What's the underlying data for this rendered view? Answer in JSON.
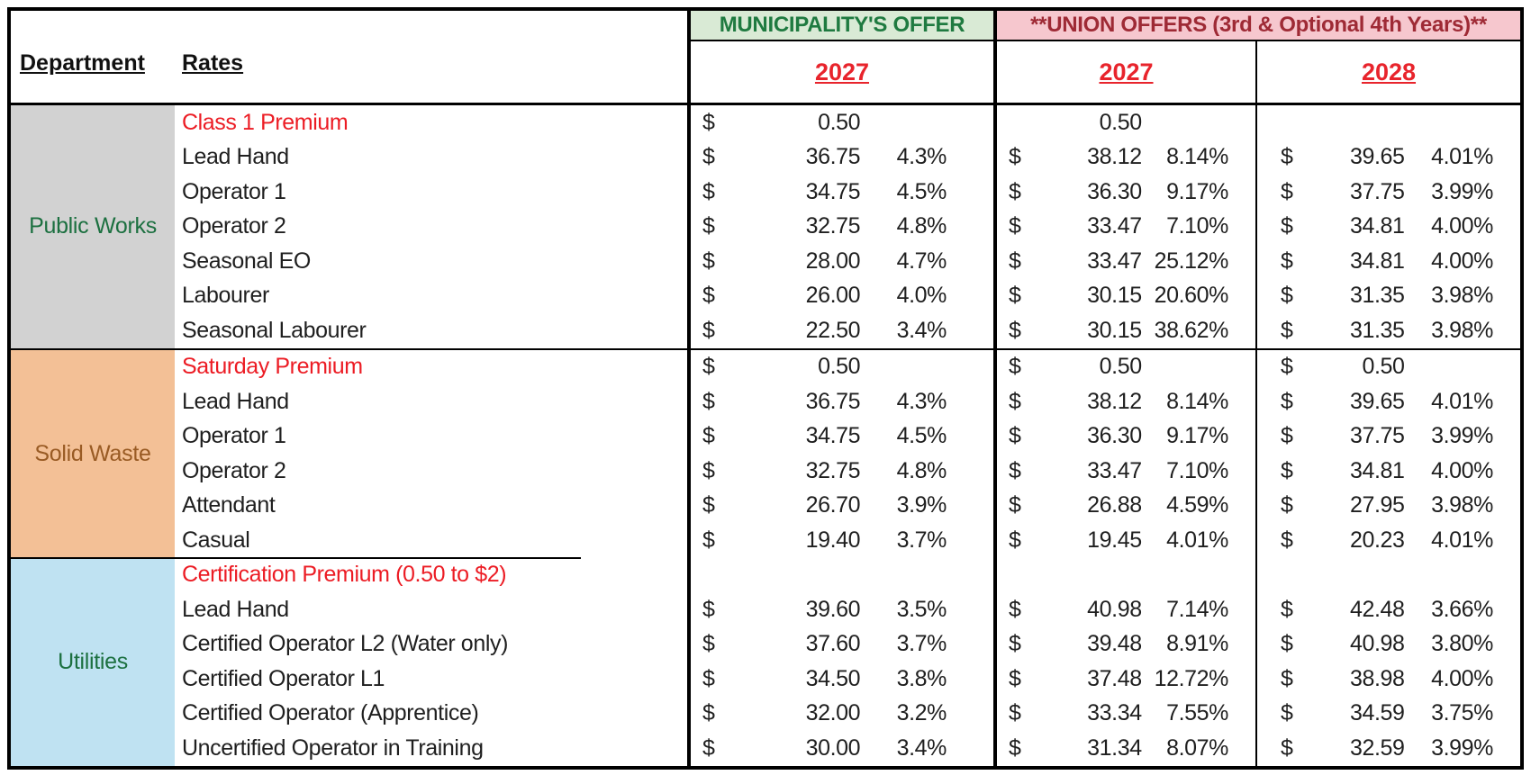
{
  "header": {
    "department_label": "Department",
    "rates_label": "Rates",
    "municipality_title": "MUNICIPALITY'S OFFER",
    "union_title": "**UNION OFFERS (3rd & Optional 4th Years)**",
    "municipality_year": "2027",
    "union_year_1": "2027",
    "union_year_2": "2028"
  },
  "colors": {
    "municipality_header_bg": "#d9ead5",
    "municipality_header_text": "#1f7a40",
    "union_header_bg": "#f6c7ce",
    "union_header_text": "#9e2a35",
    "year_text": "#e8242c",
    "premium_row_text": "#ec1c24",
    "public_works_bg": "#d2d2d2",
    "public_works_text": "#1c7040",
    "solid_waste_bg": "#f3c096",
    "solid_waste_text": "#995b24",
    "utilities_bg": "#bfe2f2",
    "utilities_text": "#1c7040"
  },
  "sections": [
    {
      "department": "Public Works",
      "dept_bg": "#d2d2d2",
      "dept_text": "#1c7040",
      "rows": [
        {
          "rate": "Class 1 Premium",
          "red": true,
          "muni": {
            "d": "$",
            "amt": "0.50",
            "pct": ""
          },
          "u1": {
            "d": "",
            "amt": "0.50",
            "pct": ""
          },
          "u2": {
            "d": "",
            "amt": "",
            "pct": ""
          }
        },
        {
          "rate": "Lead Hand",
          "red": false,
          "muni": {
            "d": "$",
            "amt": "36.75",
            "pct": "4.3%"
          },
          "u1": {
            "d": "$",
            "amt": "38.12",
            "pct": "8.14%"
          },
          "u2": {
            "d": "$",
            "amt": "39.65",
            "pct": "4.01%"
          }
        },
        {
          "rate": "Operator 1",
          "red": false,
          "muni": {
            "d": "$",
            "amt": "34.75",
            "pct": "4.5%"
          },
          "u1": {
            "d": "$",
            "amt": "36.30",
            "pct": "9.17%"
          },
          "u2": {
            "d": "$",
            "amt": "37.75",
            "pct": "3.99%"
          }
        },
        {
          "rate": "Operator 2",
          "red": false,
          "muni": {
            "d": "$",
            "amt": "32.75",
            "pct": "4.8%"
          },
          "u1": {
            "d": "$",
            "amt": "33.47",
            "pct": "7.10%"
          },
          "u2": {
            "d": "$",
            "amt": "34.81",
            "pct": "4.00%"
          }
        },
        {
          "rate": "Seasonal EO",
          "red": false,
          "muni": {
            "d": "$",
            "amt": "28.00",
            "pct": "4.7%"
          },
          "u1": {
            "d": "$",
            "amt": "33.47",
            "pct": "25.12%"
          },
          "u2": {
            "d": "$",
            "amt": "34.81",
            "pct": "4.00%"
          }
        },
        {
          "rate": "Labourer",
          "red": false,
          "muni": {
            "d": "$",
            "amt": "26.00",
            "pct": "4.0%"
          },
          "u1": {
            "d": "$",
            "amt": "30.15",
            "pct": "20.60%"
          },
          "u2": {
            "d": "$",
            "amt": "31.35",
            "pct": "3.98%"
          }
        },
        {
          "rate": "Seasonal Labourer",
          "red": false,
          "muni": {
            "d": "$",
            "amt": "22.50",
            "pct": "3.4%"
          },
          "u1": {
            "d": "$",
            "amt": "30.15",
            "pct": "38.62%"
          },
          "u2": {
            "d": "$",
            "amt": "31.35",
            "pct": "3.98%"
          }
        }
      ]
    },
    {
      "department": "Solid Waste",
      "dept_bg": "#f3c096",
      "dept_text": "#995b24",
      "rows": [
        {
          "rate": "Saturday Premium",
          "red": true,
          "muni": {
            "d": "$",
            "amt": "0.50",
            "pct": ""
          },
          "u1": {
            "d": "$",
            "amt": "0.50",
            "pct": ""
          },
          "u2": {
            "d": "$",
            "amt": "0.50",
            "pct": ""
          }
        },
        {
          "rate": "Lead Hand",
          "red": false,
          "muni": {
            "d": "$",
            "amt": "36.75",
            "pct": "4.3%"
          },
          "u1": {
            "d": "$",
            "amt": "38.12",
            "pct": "8.14%"
          },
          "u2": {
            "d": "$",
            "amt": "39.65",
            "pct": "4.01%"
          }
        },
        {
          "rate": "Operator 1",
          "red": false,
          "muni": {
            "d": "$",
            "amt": "34.75",
            "pct": "4.5%"
          },
          "u1": {
            "d": "$",
            "amt": "36.30",
            "pct": "9.17%"
          },
          "u2": {
            "d": "$",
            "amt": "37.75",
            "pct": "3.99%"
          }
        },
        {
          "rate": "Operator 2",
          "red": false,
          "muni": {
            "d": "$",
            "amt": "32.75",
            "pct": "4.8%"
          },
          "u1": {
            "d": "$",
            "amt": "33.47",
            "pct": "7.10%"
          },
          "u2": {
            "d": "$",
            "amt": "34.81",
            "pct": "4.00%"
          }
        },
        {
          "rate": "Attendant",
          "red": false,
          "muni": {
            "d": "$",
            "amt": "26.70",
            "pct": "3.9%"
          },
          "u1": {
            "d": "$",
            "amt": "26.88",
            "pct": "4.59%"
          },
          "u2": {
            "d": "$",
            "amt": "27.95",
            "pct": "3.98%"
          }
        },
        {
          "rate": "Casual",
          "red": false,
          "muni": {
            "d": "$",
            "amt": "19.40",
            "pct": "3.7%"
          },
          "u1": {
            "d": "$",
            "amt": "19.45",
            "pct": "4.01%"
          },
          "u2": {
            "d": "$",
            "amt": "20.23",
            "pct": "4.01%"
          }
        }
      ]
    },
    {
      "department": "Utilities",
      "dept_bg": "#bfe2f2",
      "dept_text": "#1c7040",
      "rows": [
        {
          "rate": "Certification Premium (0.50 to $2)",
          "red": true,
          "muni": {
            "d": "",
            "amt": "",
            "pct": ""
          },
          "u1": {
            "d": "",
            "amt": "",
            "pct": ""
          },
          "u2": {
            "d": "",
            "amt": "",
            "pct": ""
          }
        },
        {
          "rate": "Lead Hand",
          "red": false,
          "muni": {
            "d": "$",
            "amt": "39.60",
            "pct": "3.5%"
          },
          "u1": {
            "d": "$",
            "amt": "40.98",
            "pct": "7.14%"
          },
          "u2": {
            "d": "$",
            "amt": "42.48",
            "pct": "3.66%"
          }
        },
        {
          "rate": "Certified Operator L2 (Water only)",
          "red": false,
          "muni": {
            "d": "$",
            "amt": "37.60",
            "pct": "3.7%"
          },
          "u1": {
            "d": "$",
            "amt": "39.48",
            "pct": "8.91%"
          },
          "u2": {
            "d": "$",
            "amt": "40.98",
            "pct": "3.80%"
          }
        },
        {
          "rate": "Certified Operator L1",
          "red": false,
          "muni": {
            "d": "$",
            "amt": "34.50",
            "pct": "3.8%"
          },
          "u1": {
            "d": "$",
            "amt": "37.48",
            "pct": "12.72%"
          },
          "u2": {
            "d": "$",
            "amt": "38.98",
            "pct": "4.00%"
          }
        },
        {
          "rate": "Certified Operator (Apprentice)",
          "red": false,
          "muni": {
            "d": "$",
            "amt": "32.00",
            "pct": "3.2%"
          },
          "u1": {
            "d": "$",
            "amt": "33.34",
            "pct": "7.55%"
          },
          "u2": {
            "d": "$",
            "amt": "34.59",
            "pct": "3.75%"
          }
        },
        {
          "rate": "Uncertified Operator in Training",
          "red": false,
          "muni": {
            "d": "$",
            "amt": "30.00",
            "pct": "3.4%"
          },
          "u1": {
            "d": "$",
            "amt": "31.34",
            "pct": "8.07%"
          },
          "u2": {
            "d": "$",
            "amt": "32.59",
            "pct": "3.99%"
          }
        }
      ]
    }
  ]
}
